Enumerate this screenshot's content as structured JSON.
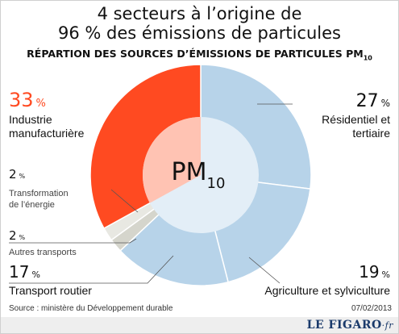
{
  "header": {
    "title_line1": "4 secteurs à l’origine de",
    "title_line2": "96 % des émissions de particules",
    "subtitle_main": "RÉPARTION DES SOURCES D’ÉMISSIONS DE PARTICULES PM",
    "subtitle_sub": "10"
  },
  "center_label": {
    "main": "PM",
    "sub": "10"
  },
  "footer": {
    "source": "Source : ministère du Développement durable",
    "date": "07/02/2013",
    "logo_main": "LE FIGARO",
    "logo_suffix": "·fr"
  },
  "chart_data": {
    "type": "pie",
    "title": "4 secteurs à l’origine de 96 % des émissions de particules",
    "subtitle": "RÉPARTION DES SOURCES D’ÉMISSIONS DE PARTICULES PM10",
    "unit": "%",
    "slices": [
      {
        "label": "Résidentiel et tertiaire",
        "value": 27,
        "color": "#b7d3e9"
      },
      {
        "label": "Agriculture et sylviculture",
        "value": 19,
        "color": "#b7d3e9"
      },
      {
        "label": "Transport routier",
        "value": 17,
        "color": "#b7d3e9"
      },
      {
        "label": "Autres transports",
        "value": 2,
        "color": "#d5d5cc"
      },
      {
        "label": "Transformation de l’énergie",
        "value": 2,
        "color": "#e8e8e2"
      },
      {
        "label": "Industrie manufacturière",
        "value": 33,
        "color": "#ff4a21"
      }
    ]
  },
  "colors": {
    "highlight_text": "#ff4a21",
    "inner_blue": "#e3eef7",
    "inner_red": "#ffc3b3",
    "separator": "#ffffff"
  }
}
